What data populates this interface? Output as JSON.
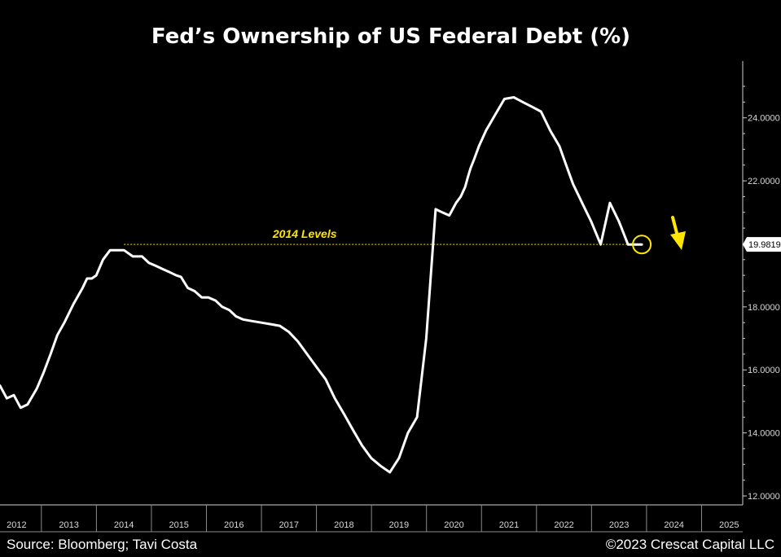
{
  "chart_data": {
    "type": "line",
    "title": "Fed’s Ownership of US Federal Debt (%)",
    "xlabel": "",
    "ylabel": "",
    "ylim": [
      12,
      25
    ],
    "xlim": [
      "2011-10-01",
      "2025-04-01"
    ],
    "grid": false,
    "y_ticks": [
      "12.0000",
      "14.0000",
      "16.0000",
      "18.0000",
      "20.0000",
      "22.0000",
      "24.0000"
    ],
    "x_tick_labels": [
      "2012",
      "2013",
      "2014",
      "2015",
      "2016",
      "2017",
      "2018",
      "2019",
      "2020",
      "2021",
      "2022",
      "2023",
      "2024",
      "2025"
    ],
    "series": [
      {
        "color": "#ffffff",
        "x": [
          "2011-10-01",
          "2011-11-15",
          "2012-01-01",
          "2012-02-15",
          "2012-04-01",
          "2012-06-01",
          "2012-07-15",
          "2012-09-01",
          "2012-10-15",
          "2012-12-01",
          "2013-02-01",
          "2013-04-01",
          "2013-05-01",
          "2013-06-01",
          "2013-07-01",
          "2013-08-15",
          "2013-10-01",
          "2013-11-15",
          "2014-01-01",
          "2014-03-01",
          "2014-05-01",
          "2014-06-15",
          "2014-08-01",
          "2014-09-15",
          "2014-11-01",
          "2014-12-15",
          "2015-01-15",
          "2015-03-01",
          "2015-04-15",
          "2015-06-01",
          "2015-07-15",
          "2015-09-01",
          "2015-10-15",
          "2015-12-01",
          "2016-01-15",
          "2016-03-01",
          "2016-05-01",
          "2016-07-01",
          "2016-09-01",
          "2016-11-01",
          "2017-01-01",
          "2017-03-01",
          "2017-05-01",
          "2017-07-01",
          "2017-09-01",
          "2017-11-01",
          "2018-01-01",
          "2018-03-01",
          "2018-05-01",
          "2018-07-01",
          "2018-09-01",
          "2018-11-01",
          "2019-01-01",
          "2019-03-01",
          "2019-05-01",
          "2019-07-01",
          "2019-09-01",
          "2019-10-15",
          "2019-12-01",
          "2020-01-15",
          "2020-02-15",
          "2020-03-15",
          "2020-04-01",
          "2020-04-20",
          "2020-05-15",
          "2020-06-15",
          "2020-08-01",
          "2020-10-01",
          "2020-12-01",
          "2021-02-01",
          "2021-04-01",
          "2021-06-01",
          "2021-08-01",
          "2021-10-01",
          "2021-12-01",
          "2022-01-15",
          "2022-03-01",
          "2022-05-01",
          "2022-07-01",
          "2022-09-01",
          "2022-11-01",
          "2023-01-01",
          "2023-03-01",
          "2023-05-01",
          "2023-06-01"
        ],
        "values": [
          15.5,
          15.1,
          15.2,
          14.8,
          14.9,
          15.4,
          15.9,
          16.5,
          17.1,
          17.5,
          18.1,
          18.6,
          18.9,
          18.9,
          19.0,
          19.5,
          19.8,
          19.8,
          19.8,
          19.6,
          19.6,
          19.4,
          19.3,
          19.2,
          19.1,
          19.0,
          18.95,
          18.6,
          18.5,
          18.3,
          18.3,
          18.2,
          18.0,
          17.9,
          17.7,
          17.6,
          17.55,
          17.5,
          17.45,
          17.4,
          17.2,
          16.9,
          16.5,
          16.1,
          15.7,
          15.1,
          14.6,
          14.1,
          13.6,
          13.2,
          12.95,
          12.75,
          13.2,
          14.0,
          14.5,
          17.0,
          21.1,
          21.0,
          20.9,
          21.3,
          21.5,
          21.8,
          22.1,
          22.4,
          22.7,
          23.1,
          23.6,
          24.1,
          24.6,
          24.65,
          24.5,
          24.35,
          24.2,
          23.6,
          23.1,
          22.5,
          21.9,
          21.3,
          20.7,
          19.98,
          21.3,
          20.7,
          19.98,
          19.98,
          19.98
        ]
      }
    ],
    "last_value_label": "19.9819",
    "reference_line": {
      "value": 19.9819,
      "from": "2014-01-01",
      "to": "2023-06-01",
      "label": "2014 Levels",
      "color": "#ffe600"
    },
    "highlight": {
      "x": "2023-06-01",
      "y": 19.98,
      "color": "#ffe600"
    },
    "arrow_color": "#ffe600"
  },
  "footer": {
    "source": "Source: Bloomberg; Tavi Costa",
    "copyright": "©2023 Crescat Capital LLC"
  }
}
